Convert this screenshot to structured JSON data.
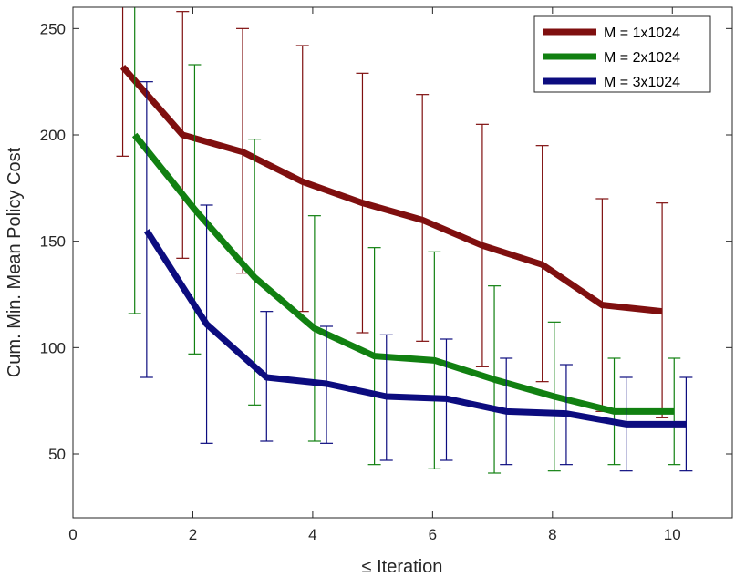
{
  "chart_data": {
    "type": "line",
    "title": "",
    "xlabel": "≤ Iteration",
    "ylabel": "Cum. Min. Mean Policy Cost",
    "xlim": [
      0,
      11
    ],
    "ylim": [
      20,
      260
    ],
    "xticks": [
      0,
      2,
      4,
      6,
      8,
      10
    ],
    "yticks": [
      50,
      100,
      150,
      200,
      250
    ],
    "grid": false,
    "legend_position": "top-right",
    "series": [
      {
        "name": "M = 1x1024",
        "color": "#7f0f0f",
        "x": [
          0.83,
          1.83,
          2.83,
          3.83,
          4.83,
          5.83,
          6.83,
          7.83,
          8.83,
          9.83
        ],
        "values": [
          232,
          200,
          192,
          178,
          168,
          160,
          148,
          139,
          120,
          117
        ],
        "err_low": [
          190,
          142,
          135,
          117,
          107,
          103,
          91,
          84,
          70,
          67
        ],
        "err_high": [
          260,
          258,
          250,
          242,
          229,
          219,
          205,
          195,
          170,
          168
        ]
      },
      {
        "name": "M = 2x1024",
        "color": "#118011",
        "x": [
          1.03,
          2.03,
          3.03,
          4.03,
          5.03,
          6.03,
          7.03,
          8.03,
          9.03,
          10.03
        ],
        "values": [
          200,
          165,
          133,
          109,
          96,
          94,
          85,
          77,
          70,
          70
        ],
        "err_low": [
          116,
          97,
          73,
          56,
          45,
          43,
          41,
          42,
          45,
          45
        ],
        "err_high": [
          260,
          233,
          198,
          162,
          147,
          145,
          129,
          112,
          95,
          95
        ]
      },
      {
        "name": "M = 3x1024",
        "color": "#0c0c7f",
        "x": [
          1.23,
          2.23,
          3.23,
          4.23,
          5.23,
          6.23,
          7.23,
          8.23,
          9.23,
          10.23
        ],
        "values": [
          155,
          111,
          86,
          83,
          77,
          76,
          70,
          69,
          64,
          64
        ],
        "err_low": [
          86,
          55,
          56,
          55,
          47,
          47,
          45,
          45,
          42,
          42
        ],
        "err_high": [
          225,
          167,
          117,
          110,
          106,
          104,
          95,
          92,
          86,
          86
        ]
      }
    ]
  }
}
